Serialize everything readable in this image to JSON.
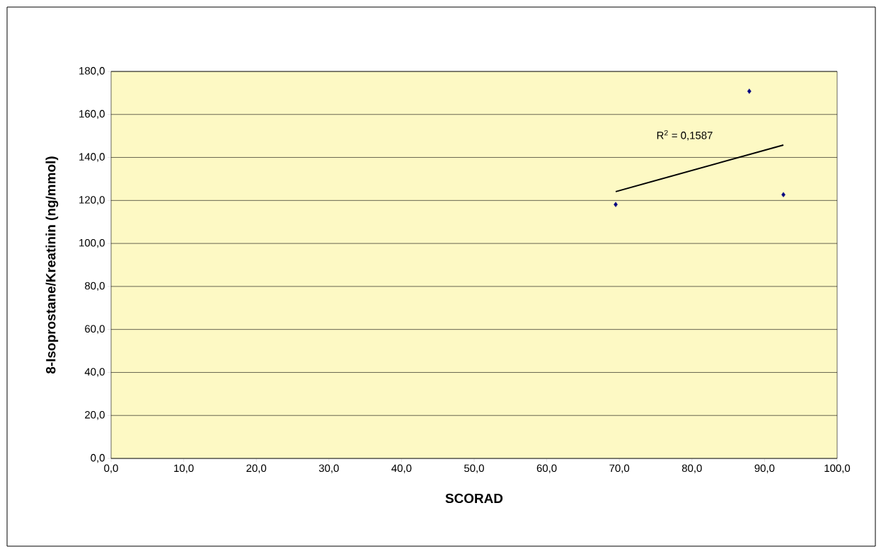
{
  "chart_data": {
    "type": "scatter",
    "xlabel": "SCORAD",
    "ylabel": "8-Isoprostane/Kreatinin (ng/mmol)",
    "series": [
      {
        "x": [
          69.5,
          87.9,
          92.6
        ],
        "values": [
          118.1,
          170.8,
          122.7
        ],
        "color": "#000080",
        "marker": "diamond"
      },
      {
        "type": "line",
        "x": [
          69.5,
          92.6
        ],
        "values": [
          124.1,
          145.8
        ],
        "color": "#000000"
      }
    ],
    "annotations": [
      "R$^{2}$ = 0,1587"
    ],
    "xlim": [
      0,
      100
    ],
    "ylim": [
      0,
      180
    ],
    "xticks": [
      {
        "value": 0,
        "label": "0,0"
      },
      {
        "value": 10,
        "label": "10,0"
      },
      {
        "value": 20,
        "label": "20,0"
      },
      {
        "value": 30,
        "label": "30,0"
      },
      {
        "value": 40,
        "label": "40,0"
      },
      {
        "value": 50,
        "label": "50,0"
      },
      {
        "value": 60,
        "label": "60,0"
      },
      {
        "value": 70,
        "label": "70,0"
      },
      {
        "value": 80,
        "label": "80,0"
      },
      {
        "value": 90,
        "label": "90,0"
      },
      {
        "value": 100,
        "label": "100,0"
      }
    ],
    "yticks": [
      {
        "value": 0,
        "label": "0,0"
      },
      {
        "value": 20,
        "label": "20,0"
      },
      {
        "value": 40,
        "label": "40,0"
      },
      {
        "value": 60,
        "label": "60,0"
      },
      {
        "value": 80,
        "label": "80,0"
      },
      {
        "value": 100,
        "label": "100,0"
      },
      {
        "value": 120,
        "label": "120,0"
      },
      {
        "value": 140,
        "label": "140,0"
      },
      {
        "value": 160,
        "label": "160,0"
      },
      {
        "value": 180,
        "label": "180,0"
      }
    ],
    "grid": "y"
  }
}
